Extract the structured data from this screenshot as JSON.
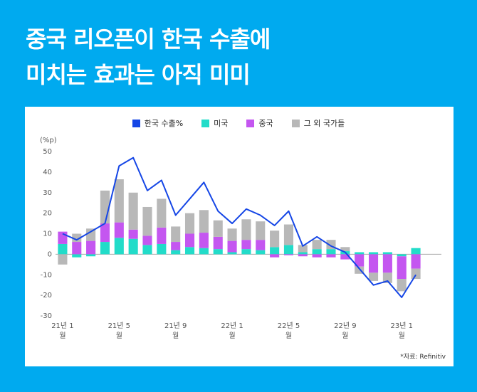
{
  "title_lines": [
    "중국 리오픈이 한국 수출에",
    "미치는 효과는 아직 미미"
  ],
  "chart_data": {
    "type": "bar-line",
    "y_label": "(%p)",
    "source": "*자료: Refinitiv",
    "categories": [
      "21년 1월",
      null,
      null,
      null,
      "21년 5월",
      null,
      null,
      null,
      "21년 9월",
      null,
      null,
      null,
      "22년 1월",
      null,
      null,
      null,
      "22년 5월",
      null,
      null,
      null,
      "22년 9월",
      null,
      null,
      null,
      "23년 1월",
      null
    ],
    "series": [
      {
        "name": "한국 수출%",
        "color": "#1546e6",
        "kind": "line",
        "values": [
          10,
          7,
          11,
          15,
          43,
          47,
          31,
          36,
          19,
          27,
          35,
          21,
          15,
          22,
          19,
          14,
          21,
          4,
          8.5,
          4,
          1,
          -7,
          -15,
          -13,
          -21,
          -10
        ]
      },
      {
        "name": "미국",
        "color": "#22dcc9",
        "kind": "bar",
        "values": [
          5,
          -1.5,
          -1,
          6,
          8,
          7.5,
          4.5,
          5,
          2,
          3.5,
          3,
          2.5,
          1,
          2.5,
          2,
          3.5,
          4.5,
          1,
          2.5,
          2.5,
          1.5,
          1,
          1,
          1,
          -1,
          3
        ]
      },
      {
        "name": "중국",
        "color": "#c456f0",
        "kind": "bar",
        "values": [
          6,
          6,
          6.5,
          9,
          7.5,
          4.5,
          4.5,
          8,
          4,
          6.5,
          7.5,
          6,
          5.5,
          4.5,
          5,
          -1.5,
          -0.5,
          -1,
          -1.5,
          -1.5,
          -2.5,
          -6,
          -9,
          -9,
          -11,
          -7
        ]
      },
      {
        "name": "그 외 국가들",
        "color": "#b8b8b8",
        "kind": "bar",
        "values": [
          -5,
          4,
          6,
          16,
          21,
          18,
          14,
          14,
          7.5,
          10,
          11,
          8,
          6,
          10,
          9,
          8,
          10,
          3.5,
          4.5,
          4.5,
          2,
          -3.5,
          -4,
          -5,
          -6,
          -5
        ]
      }
    ],
    "ylim": [
      -30,
      50
    ],
    "yticks": [
      -30,
      -20,
      -10,
      0,
      10,
      20,
      30,
      40,
      50
    ]
  }
}
